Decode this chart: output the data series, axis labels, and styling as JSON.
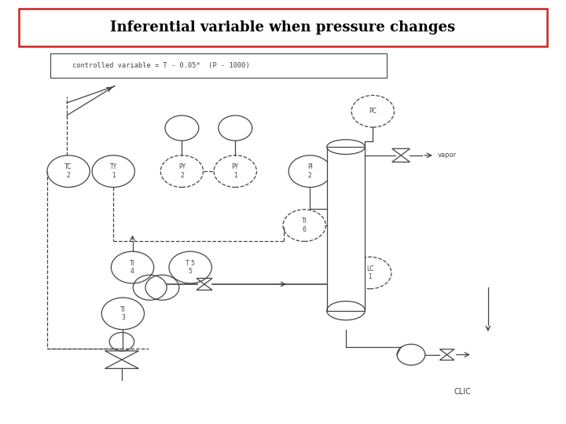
{
  "title": "Inferential variable when pressure changes",
  "title_fontsize": 13,
  "controlled_var_text": "controlled variable = T - 0.05*  (P - 1000)",
  "background": "#ffffff",
  "border_color": "#cc2222",
  "diagram_color": "#444444",
  "vapor_label": "vapor",
  "clic_label": "CLIC",
  "lw": 0.9,
  "r_inst": 0.038
}
